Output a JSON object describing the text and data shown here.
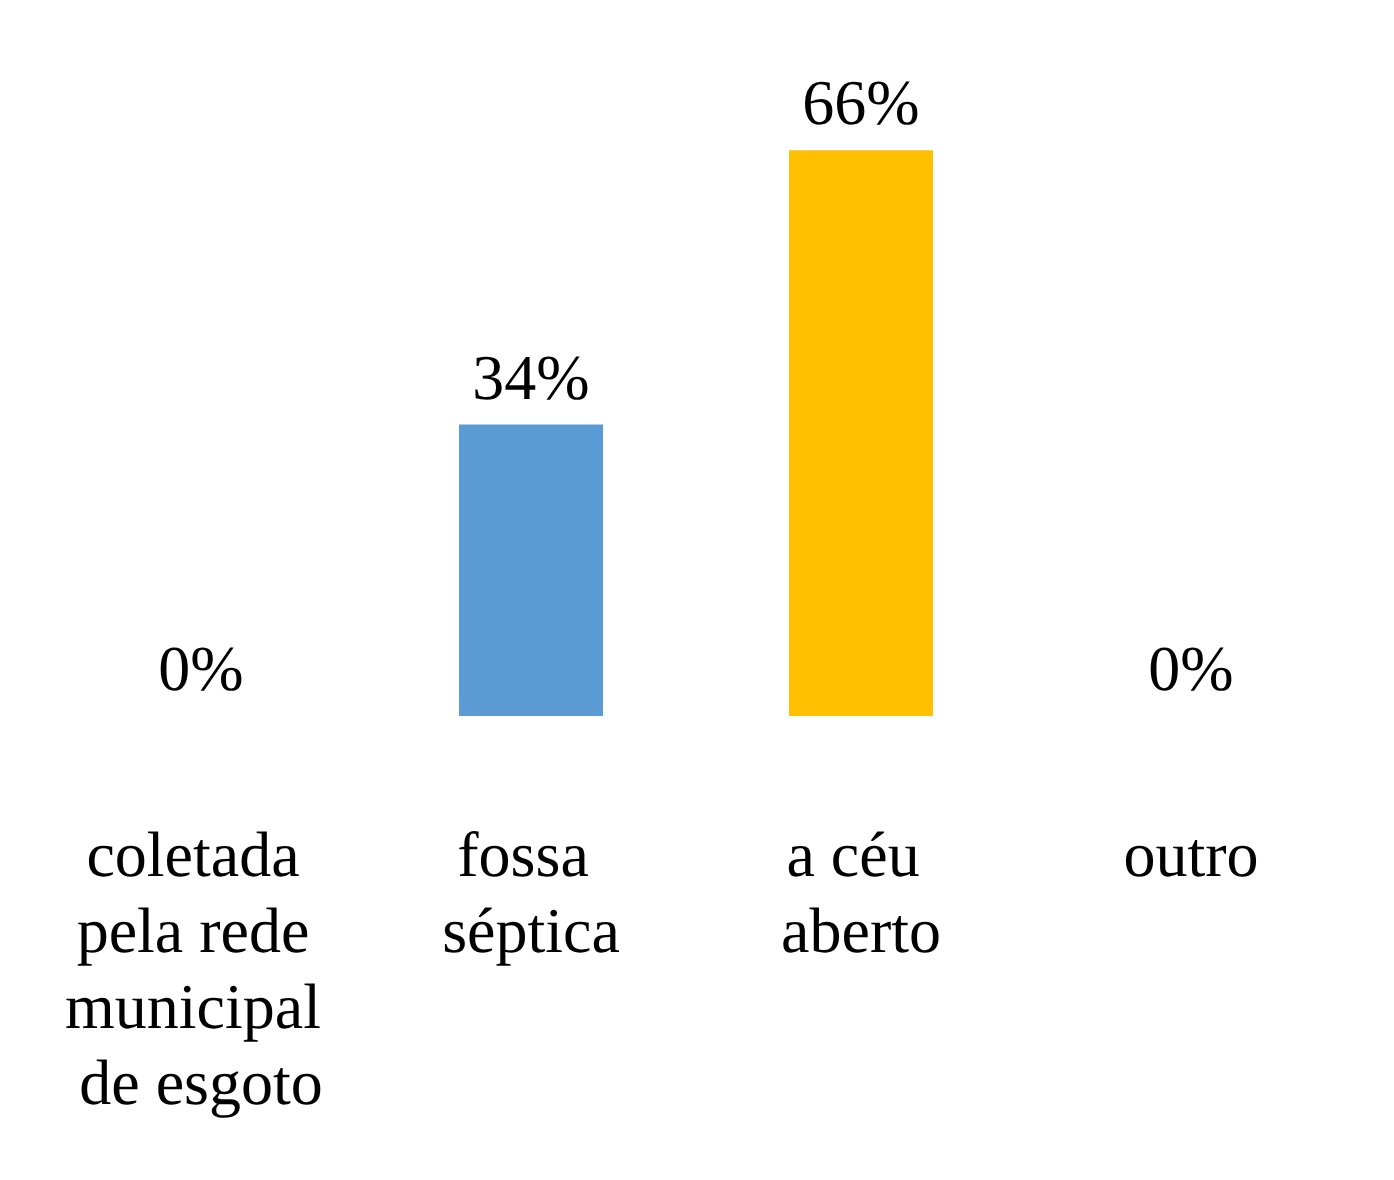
{
  "chart_data": {
    "type": "bar",
    "categories": [
      "coletada pela rede municipal de esgoto",
      "fossa séptica",
      "a céu aberto",
      "outro"
    ],
    "values": [
      0,
      34,
      66,
      0
    ],
    "colors": [
      "#5b8a3a",
      "#5b9bd5",
      "#ffc000",
      "#375623"
    ],
    "value_labels": [
      "0%",
      "34%",
      "66%",
      "0%"
    ]
  }
}
